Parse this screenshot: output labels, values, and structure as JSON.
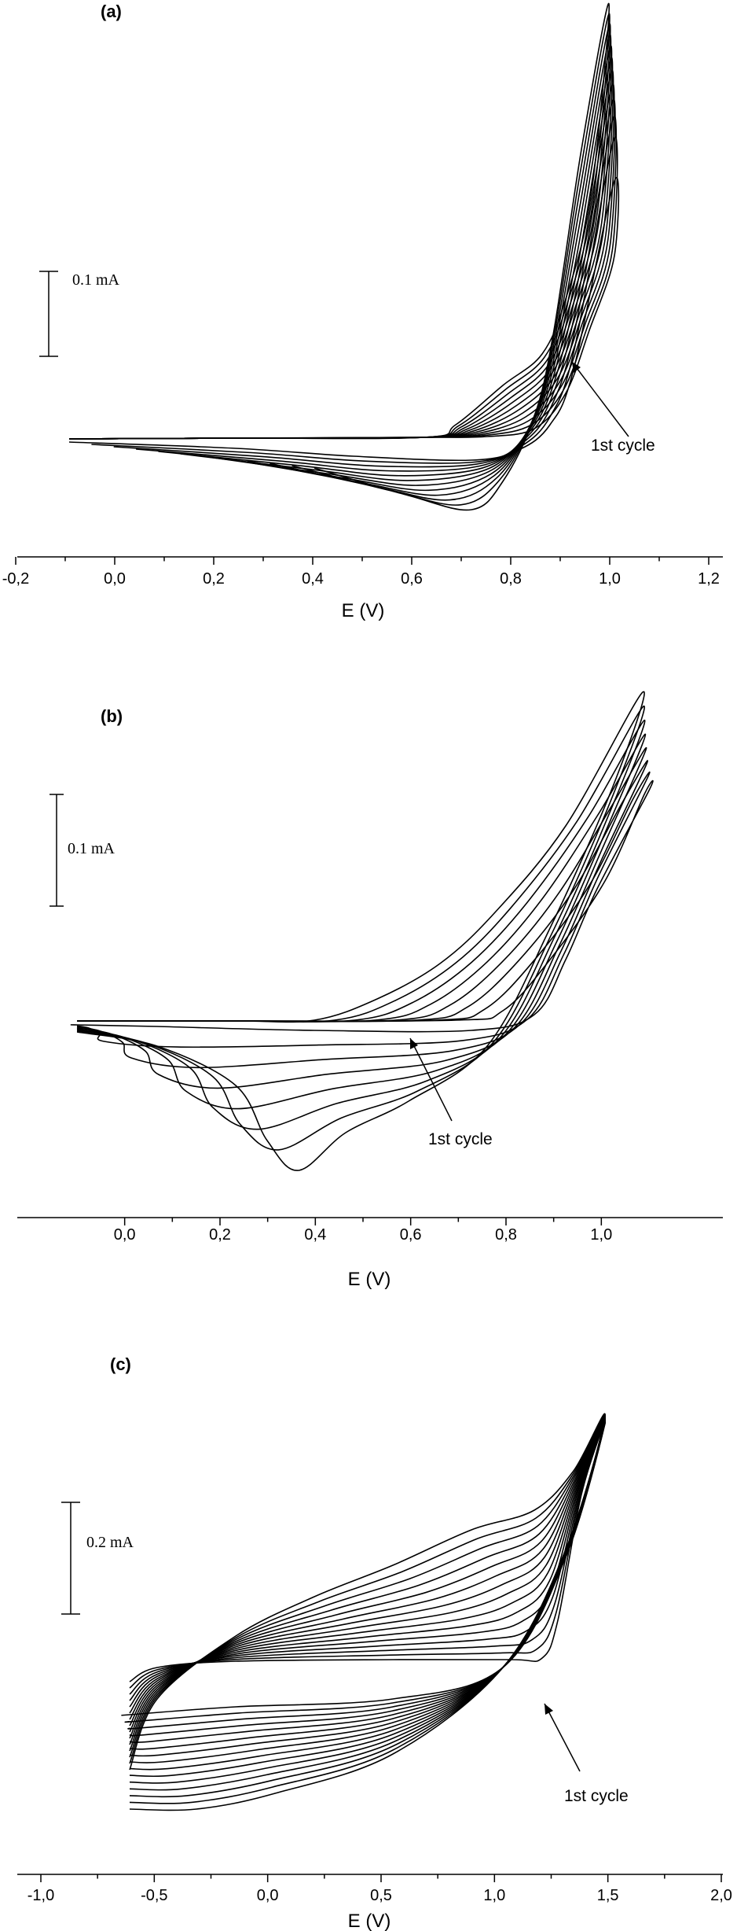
{
  "chart_data": [
    {
      "type": "line",
      "panel_label": "(a)",
      "xlabel": "E (V)",
      "xlim": [
        -0.2,
        1.2
      ],
      "xticks": [
        "-0,2",
        "0,0",
        "0,2",
        "0,4",
        "0,6",
        "0,8",
        "1,0",
        "1,2"
      ],
      "scale_bar": "0.1 mA",
      "annotation": "1st cycle",
      "series_count": 12
    },
    {
      "type": "line",
      "panel_label": "(b)",
      "xlabel": "E (V)",
      "xlim": [
        -0.1,
        1.1
      ],
      "xticks": [
        "0,0",
        "0,2",
        "0,4",
        "0,6",
        "0,8",
        "1,0"
      ],
      "scale_bar": "0.1 mA",
      "annotation": "1st cycle",
      "series_count": 8
    },
    {
      "type": "line",
      "panel_label": "(c)",
      "xlabel": "E (V)",
      "xlim": [
        -1.0,
        2.0
      ],
      "xticks": [
        "-1,0",
        "-0,5",
        "0,0",
        "0,5",
        "1,0",
        "1,5",
        "2,0"
      ],
      "scale_bar": "0.2 mA",
      "annotation": "1st cycle",
      "series_count": 15
    }
  ]
}
